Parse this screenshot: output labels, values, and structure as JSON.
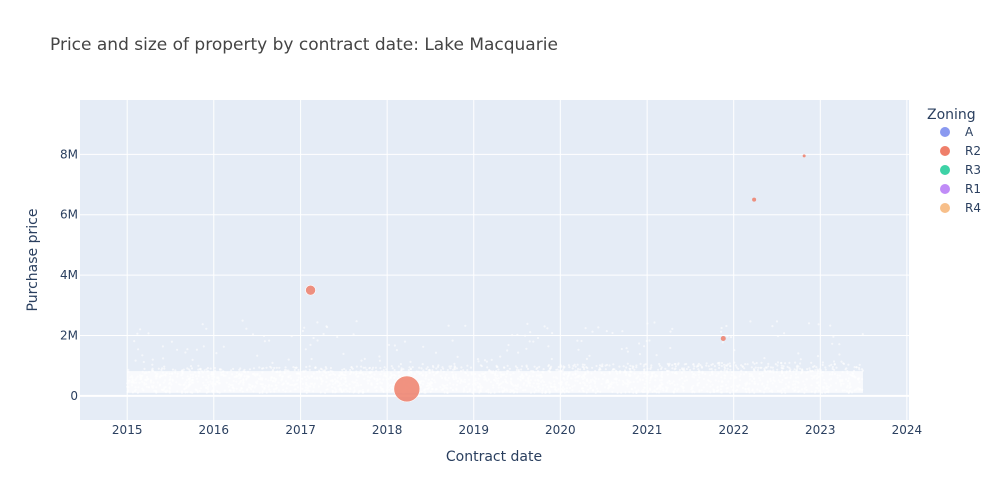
{
  "chart_data": {
    "type": "scatter",
    "title": "Price and size of property by contract date: Lake Macquarie",
    "xlabel": "Contract date",
    "ylabel": "Purchase price",
    "x_ticks": [
      "2015",
      "2016",
      "2017",
      "2018",
      "2019",
      "2020",
      "2021",
      "2022",
      "2023",
      "2024"
    ],
    "y_ticks": [
      "0",
      "2M",
      "4M",
      "6M",
      "8M"
    ],
    "xlim": [
      "2014-06-16",
      "2024-01-10"
    ],
    "ylim": [
      -800000,
      9800000
    ],
    "grid": true,
    "legend_position": "right",
    "legend_title": "Zoning",
    "colors": {
      "plot_bg": "#e5ecf6",
      "grid": "#ffffff",
      "text": "#2a3f5f",
      "title": "#444444"
    },
    "series": [
      {
        "name": "A",
        "color": "#8a99f0"
      },
      {
        "name": "R2",
        "color": "#ef7f6a"
      },
      {
        "name": "R3",
        "color": "#3dd2a6"
      },
      {
        "name": "R1",
        "color": "#c08cf7"
      },
      {
        "name": "R4",
        "color": "#f7bf8a"
      }
    ],
    "highlighted_points": [
      {
        "series": "R2",
        "x": "2017-02-12",
        "y": 3500000,
        "size": 5
      },
      {
        "series": "R2",
        "x": "2018-03-25",
        "y": 230000,
        "size": 13
      },
      {
        "series": "R2",
        "x": "2021-11-18",
        "y": 1900000,
        "size": 2.5
      },
      {
        "series": "R2",
        "x": "2022-03-28",
        "y": 6500000,
        "size": 2
      },
      {
        "series": "R2",
        "x": "2022-10-25",
        "y": 7950000,
        "size": 1.5
      }
    ],
    "dense_band": {
      "series": "R2",
      "x_range": [
        "2015-01-01",
        "2023-06-30"
      ],
      "y_core_low": 100000,
      "y_core_high": 900000,
      "y_spread_max": 2500000
    }
  }
}
